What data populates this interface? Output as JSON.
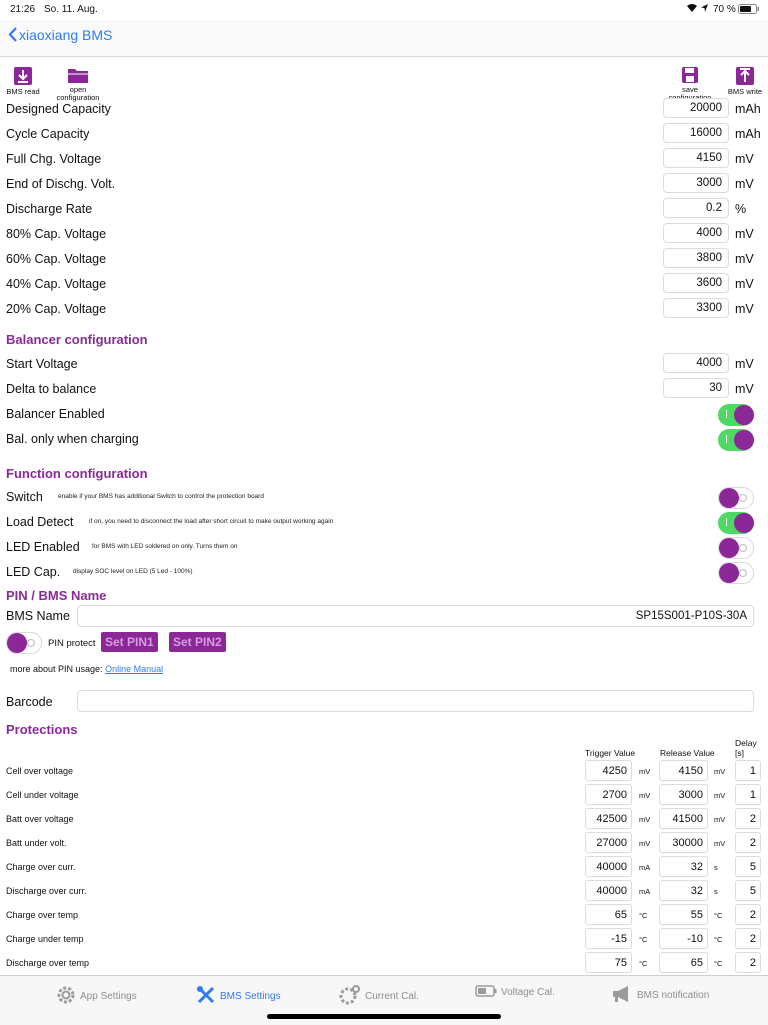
{
  "status": {
    "time": "21:26",
    "date": "So. 11. Aug.",
    "battery": "70 %"
  },
  "nav": {
    "back_label": "xiaoxiang BMS"
  },
  "toolbar": {
    "bms_read": "BMS read",
    "open_config_1": "open",
    "open_config_2": "configuration",
    "save_config_1": "save",
    "save_config_2": "configuration",
    "bms_write": "BMS write"
  },
  "capacity": [
    {
      "label": "Designed Capacity",
      "value": "20000",
      "unit": "mAh"
    },
    {
      "label": "Cycle Capacity",
      "value": "16000",
      "unit": "mAh"
    },
    {
      "label": "Full Chg. Voltage",
      "value": "4150",
      "unit": "mV"
    },
    {
      "label": "End of Dischg. Volt.",
      "value": "3000",
      "unit": "mV"
    },
    {
      "label": "Discharge Rate",
      "value": "0.2",
      "unit": "%"
    },
    {
      "label": "80% Cap. Voltage",
      "value": "4000",
      "unit": "mV"
    },
    {
      "label": "60% Cap. Voltage",
      "value": "3800",
      "unit": "mV"
    },
    {
      "label": "40% Cap. Voltage",
      "value": "3600",
      "unit": "mV"
    },
    {
      "label": "20% Cap. Voltage",
      "value": "3300",
      "unit": "mV"
    }
  ],
  "balancer": {
    "title": "Balancer configuration",
    "start_label": "Start Voltage",
    "start_value": "4000",
    "start_unit": "mV",
    "delta_label": "Delta to balance",
    "delta_value": "30",
    "delta_unit": "mV",
    "enabled_label": "Balancer Enabled",
    "enabled_on": true,
    "charging_label": "Bal. only when charging",
    "charging_on": true
  },
  "function": {
    "title": "Function configuration",
    "items": [
      {
        "label": "Switch",
        "hint": "enable if your BMS has additional Switch to control the protection board",
        "on": false
      },
      {
        "label": "Load Detect",
        "hint": "if on, you need to disconnect the load after short circuit to make output working again",
        "on": true
      },
      {
        "label": "LED Enabled",
        "hint": "for BMS with LED soldered on only. Turns them on",
        "on": false
      },
      {
        "label": "LED Cap.",
        "hint": "display SOC level on LED (5 Led - 100%)",
        "on": false
      }
    ]
  },
  "pin": {
    "title": "PIN / BMS Name",
    "name_label": "BMS Name",
    "name_value": "SP15S001-P10S-30A",
    "protect_label": "PIN protect",
    "set_pin1": "Set PIN1",
    "set_pin2": "Set PIN2",
    "more_text": "more about PIN usage:",
    "manual_link": "Online Manual",
    "barcode_label": "Barcode",
    "barcode_value": ""
  },
  "protections": {
    "title": "Protections",
    "col_trigger": "Trigger Value",
    "col_release": "Release Value",
    "col_delay_1": "Delay",
    "col_delay_2": "[s]",
    "rows": [
      {
        "label": "Cell over voltage",
        "trigger": "4250",
        "tunit": "mV",
        "release": "4150",
        "runit": "mV",
        "delay": "1"
      },
      {
        "label": "Cell under voltage",
        "trigger": "2700",
        "tunit": "mV",
        "release": "3000",
        "runit": "mV",
        "delay": "1"
      },
      {
        "label": "Batt over voltage",
        "trigger": "42500",
        "tunit": "mV",
        "release": "41500",
        "runit": "mV",
        "delay": "2"
      },
      {
        "label": "Batt under volt.",
        "trigger": "27000",
        "tunit": "mV",
        "release": "30000",
        "runit": "mV",
        "delay": "2"
      },
      {
        "label": "Charge over curr.",
        "trigger": "40000",
        "tunit": "mA",
        "release": "32",
        "runit": "s",
        "delay": "5"
      },
      {
        "label": "Discharge over curr.",
        "trigger": "40000",
        "tunit": "mA",
        "release": "32",
        "runit": "s",
        "delay": "5"
      },
      {
        "label": "Charge over temp",
        "trigger": "65",
        "tunit": "°C",
        "release": "55",
        "runit": "°C",
        "delay": "2"
      },
      {
        "label": "Charge under temp",
        "trigger": "-15",
        "tunit": "°C",
        "release": "-10",
        "runit": "°C",
        "delay": "2"
      },
      {
        "label": "Discharge over temp",
        "trigger": "75",
        "tunit": "°C",
        "release": "65",
        "runit": "°C",
        "delay": "2"
      }
    ]
  },
  "tabs": [
    {
      "label": "App Settings",
      "icon": "gear-icon",
      "active": false
    },
    {
      "label": "BMS Settings",
      "icon": "tools-icon",
      "active": true
    },
    {
      "label": "Current Cal.",
      "icon": "gear-icon",
      "active": false
    },
    {
      "label": "Voltage Cal.",
      "icon": "battery-icon",
      "active": false
    },
    {
      "label": "BMS notification",
      "icon": "megaphone-icon",
      "active": false
    }
  ],
  "colors": {
    "accent": "#8b2797",
    "link": "#2f7bf5",
    "toggle_on": "#4cd964"
  }
}
